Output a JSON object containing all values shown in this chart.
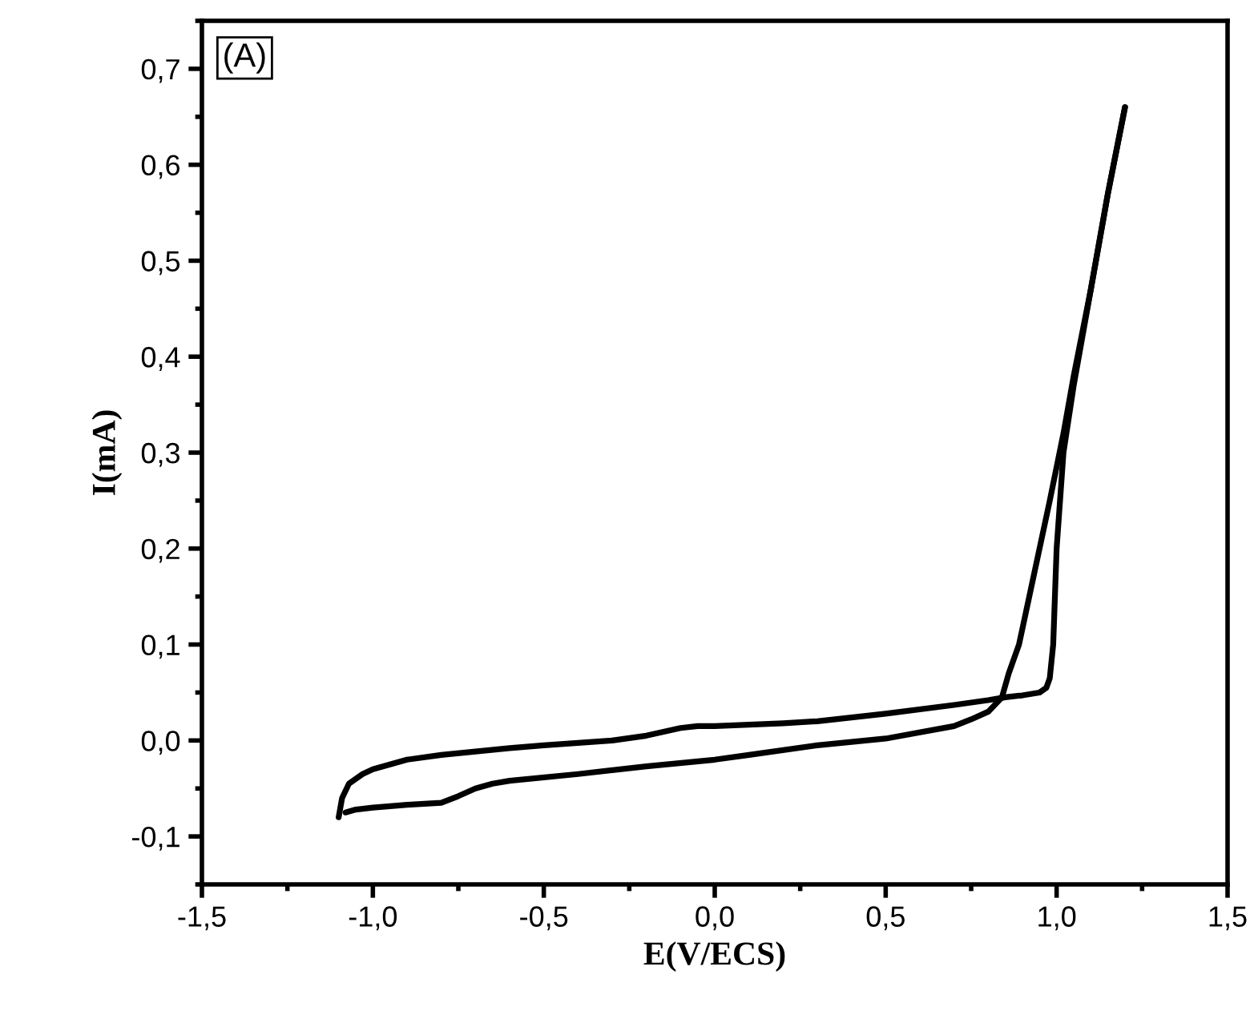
{
  "chart_data": {
    "type": "line",
    "xlabel": "E(V/ECS)",
    "ylabel": "I(mA)",
    "annotations": [
      "(A)"
    ],
    "xlim": [
      -1.5,
      1.5
    ],
    "ylim": [
      -0.15,
      0.75
    ],
    "xticks": [
      {
        "value": -1.5,
        "label": "-1,5"
      },
      {
        "value": -1.0,
        "label": "-1,0"
      },
      {
        "value": -0.5,
        "label": "-0,5"
      },
      {
        "value": 0.0,
        "label": "0,0"
      },
      {
        "value": 0.5,
        "label": "0,5"
      },
      {
        "value": 1.0,
        "label": "1,0"
      },
      {
        "value": 1.5,
        "label": "1,5"
      }
    ],
    "yticks": [
      {
        "value": -0.1,
        "label": "-0,1"
      },
      {
        "value": 0.0,
        "label": "0,0"
      },
      {
        "value": 0.1,
        "label": "0,1"
      },
      {
        "value": 0.2,
        "label": "0,2"
      },
      {
        "value": 0.3,
        "label": "0,3"
      },
      {
        "value": 0.4,
        "label": "0,4"
      },
      {
        "value": 0.5,
        "label": "0,5"
      },
      {
        "value": 0.6,
        "label": "0,6"
      },
      {
        "value": 0.7,
        "label": "0,7"
      }
    ],
    "grid": false,
    "marker": "none",
    "line_style": "solid",
    "series": [
      {
        "color": "#000000",
        "x": [
          -1.1,
          -1.09,
          -1.07,
          -1.03,
          -1.0,
          -0.9,
          -0.8,
          -0.6,
          -0.5,
          -0.3,
          -0.2,
          -0.1,
          -0.05,
          0.0,
          0.2,
          0.3,
          0.5,
          0.7,
          0.8,
          0.85,
          0.9,
          0.95,
          0.97,
          0.98,
          0.99,
          1.0,
          1.02,
          1.05,
          1.1,
          1.15,
          1.2
        ],
        "values": [
          -0.08,
          -0.06,
          -0.045,
          -0.035,
          -0.03,
          -0.02,
          -0.015,
          -0.008,
          -0.005,
          0.0,
          0.005,
          0.013,
          0.015,
          0.015,
          0.018,
          0.02,
          0.028,
          0.037,
          0.042,
          0.045,
          0.047,
          0.05,
          0.055,
          0.065,
          0.1,
          0.2,
          0.3,
          0.37,
          0.47,
          0.57,
          0.66
        ]
      },
      {
        "color": "#000000",
        "x": [
          1.2,
          1.15,
          1.1,
          1.05,
          1.02,
          0.98,
          0.95,
          0.92,
          0.89,
          0.86,
          0.84,
          0.8,
          0.75,
          0.7,
          0.5,
          0.3,
          0.1,
          0.0,
          -0.2,
          -0.4,
          -0.6,
          -0.65,
          -0.7,
          -0.75,
          -0.8,
          -0.9,
          -1.0,
          -1.05,
          -1.08
        ],
        "values": [
          0.66,
          0.57,
          0.47,
          0.38,
          0.32,
          0.25,
          0.2,
          0.15,
          0.1,
          0.07,
          0.045,
          0.03,
          0.022,
          0.015,
          0.002,
          -0.005,
          -0.015,
          -0.02,
          -0.027,
          -0.035,
          -0.042,
          -0.045,
          -0.05,
          -0.058,
          -0.065,
          -0.067,
          -0.07,
          -0.072,
          -0.075
        ]
      }
    ]
  }
}
